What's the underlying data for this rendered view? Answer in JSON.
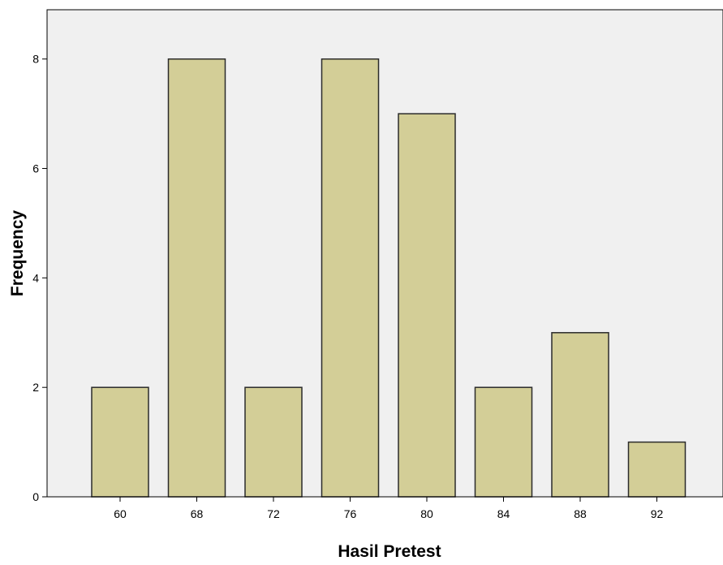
{
  "chart_data": {
    "type": "bar",
    "title": "",
    "xlabel": "Hasil Pretest",
    "ylabel": "Frequency",
    "categories": [
      "60",
      "68",
      "72",
      "76",
      "80",
      "84",
      "88",
      "92"
    ],
    "values": [
      2,
      8,
      2,
      8,
      7,
      2,
      3,
      1
    ],
    "ylim": [
      0,
      8.9
    ],
    "yticks": [
      "0",
      "2",
      "4",
      "6",
      "8"
    ],
    "grid": false,
    "legend": "none",
    "colors": {
      "bar_fill": "#d3ce97",
      "bar_stroke": "#2b2b2b",
      "plot_background": "#f0f0f0",
      "axis": "#000000"
    }
  }
}
